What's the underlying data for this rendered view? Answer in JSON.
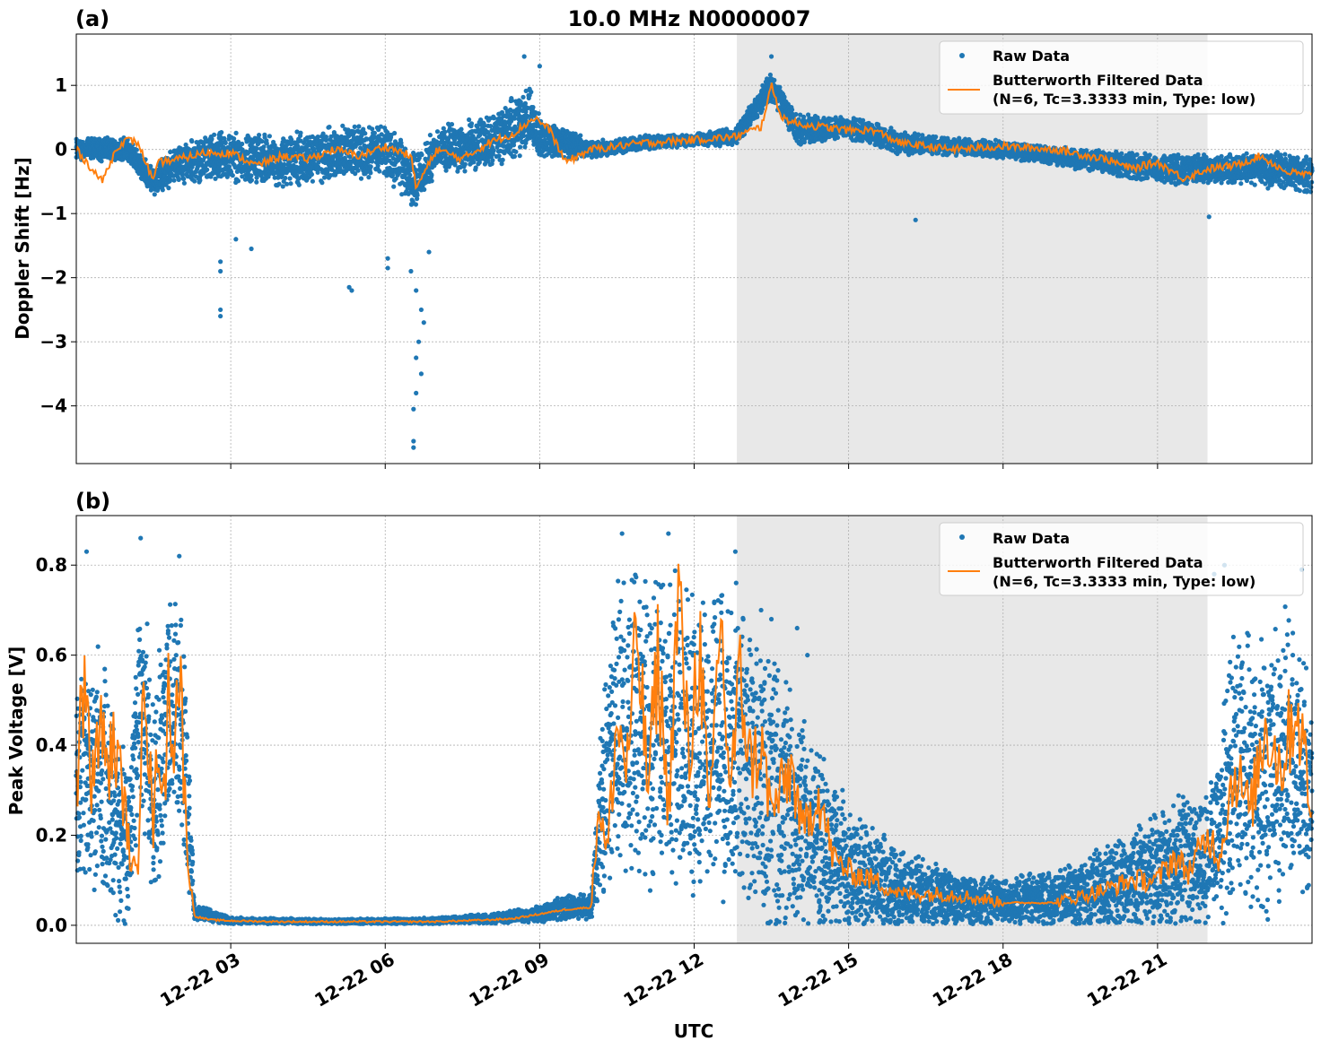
{
  "figure": {
    "title": "10.0 MHz N0000007",
    "xlabel": "UTC"
  },
  "colors": {
    "raw": "#1f77b4",
    "filtered": "#ff7f0e",
    "shade": "#e8e8e8",
    "grid": "#b0b0b0"
  },
  "chart_data": [
    {
      "type": "scatter",
      "panel": "(a)",
      "ylabel": "Doppler Shift [Hz]",
      "xlim_hours": [
        0,
        24
      ],
      "ylim": [
        -4.9,
        1.8
      ],
      "yticks": [
        -4,
        -3,
        -2,
        -1,
        0,
        1
      ],
      "ytick_labels": [
        "−4",
        "−3",
        "−2",
        "−1",
        "0",
        "1"
      ],
      "xticks_hours": [
        3,
        6,
        9,
        12,
        15,
        18,
        21
      ],
      "xtick_labels": [
        "12-22 03",
        "12-22 06",
        "12-22 09",
        "12-22 12",
        "12-22 15",
        "12-22 18",
        "12-22 21"
      ],
      "shaded_span_hours": [
        12.83,
        21.97
      ],
      "grid": true,
      "legend_position": "upper right",
      "legend": [
        "Raw Data",
        "Butterworth Filtered Data",
        "(N=6, Tc=3.3333 min, Type: low)"
      ],
      "series": [
        {
          "name": "Raw Data",
          "style": "markers",
          "x_hours": [
            0,
            1,
            1.5,
            2,
            3,
            4,
            5,
            6,
            6.6,
            7,
            8,
            8.8,
            9,
            10,
            11,
            12,
            12.8,
            13.5,
            14,
            15,
            16,
            17,
            18,
            19,
            20,
            21,
            22,
            23,
            24
          ],
          "center": [
            0.0,
            0.0,
            -0.5,
            -0.2,
            -0.1,
            -0.2,
            -0.05,
            0.0,
            -0.5,
            0.0,
            0.1,
            0.5,
            0.2,
            0.0,
            0.1,
            0.15,
            0.2,
            1.0,
            0.3,
            0.35,
            0.1,
            0.05,
            0.0,
            -0.1,
            -0.2,
            -0.3,
            -0.3,
            -0.3,
            -0.4
          ],
          "spread_hz": [
            0.2,
            0.2,
            0.25,
            0.35,
            0.45,
            0.45,
            0.45,
            0.45,
            0.5,
            0.4,
            0.45,
            0.55,
            0.35,
            0.15,
            0.12,
            0.1,
            0.15,
            0.25,
            0.25,
            0.2,
            0.2,
            0.15,
            0.15,
            0.15,
            0.2,
            0.25,
            0.25,
            0.3,
            0.3
          ],
          "outliers": [
            {
              "x": 2.8,
              "y": -2.6
            },
            {
              "x": 2.8,
              "y": -2.5
            },
            {
              "x": 2.8,
              "y": -1.9
            },
            {
              "x": 2.8,
              "y": -1.75
            },
            {
              "x": 3.1,
              "y": -1.4
            },
            {
              "x": 3.4,
              "y": -1.55
            },
            {
              "x": 5.35,
              "y": -2.2
            },
            {
              "x": 5.3,
              "y": -2.15
            },
            {
              "x": 6.05,
              "y": -1.7
            },
            {
              "x": 6.05,
              "y": -1.85
            },
            {
              "x": 6.55,
              "y": -4.65
            },
            {
              "x": 6.55,
              "y": -4.55
            },
            {
              "x": 6.55,
              "y": -4.05
            },
            {
              "x": 6.6,
              "y": -3.8
            },
            {
              "x": 6.6,
              "y": -3.25
            },
            {
              "x": 6.65,
              "y": -3.0
            },
            {
              "x": 6.7,
              "y": -3.5
            },
            {
              "x": 6.7,
              "y": -2.5
            },
            {
              "x": 6.6,
              "y": -2.2
            },
            {
              "x": 6.75,
              "y": -2.7
            },
            {
              "x": 6.5,
              "y": -1.9
            },
            {
              "x": 6.85,
              "y": -1.6
            },
            {
              "x": 8.7,
              "y": 1.45
            },
            {
              "x": 9.0,
              "y": 1.3
            },
            {
              "x": 13.5,
              "y": 1.45
            },
            {
              "x": 16.3,
              "y": -1.1
            },
            {
              "x": 22.0,
              "y": -1.05
            }
          ]
        },
        {
          "name": "Butterworth Filtered Data",
          "style": "line",
          "x_hours": [
            0,
            0.5,
            0.8,
            1.0,
            1.2,
            1.5,
            1.6,
            2.0,
            2.5,
            3.0,
            3.5,
            4.0,
            4.5,
            5.0,
            5.5,
            6.0,
            6.5,
            6.6,
            7.0,
            7.5,
            8.0,
            8.5,
            8.9,
            9.2,
            9.5,
            10.0,
            11.0,
            12.0,
            12.8,
            13.3,
            13.5,
            13.7,
            14.0,
            14.5,
            15.0,
            15.5,
            16.0,
            17.0,
            18.0,
            19.0,
            20.0,
            20.5,
            21.0,
            21.5,
            22.0,
            22.5,
            23.0,
            23.5,
            24.0
          ],
          "y": [
            0.0,
            -0.5,
            0.05,
            0.15,
            0.1,
            -0.5,
            -0.2,
            -0.15,
            -0.05,
            -0.05,
            -0.25,
            -0.1,
            -0.15,
            0.0,
            -0.1,
            0.05,
            -0.1,
            -0.6,
            0.0,
            -0.15,
            0.1,
            0.25,
            0.5,
            0.3,
            -0.2,
            0.0,
            0.1,
            0.15,
            0.2,
            0.35,
            1.0,
            0.5,
            0.4,
            0.35,
            0.3,
            0.3,
            0.1,
            0.0,
            0.05,
            0.0,
            -0.15,
            -0.3,
            -0.2,
            -0.45,
            -0.3,
            -0.25,
            -0.1,
            -0.35,
            -0.4
          ]
        }
      ]
    },
    {
      "type": "scatter",
      "panel": "(b)",
      "ylabel": "Peak Voltage [V]",
      "xlim_hours": [
        0,
        24
      ],
      "ylim": [
        -0.04,
        0.91
      ],
      "yticks": [
        0.0,
        0.2,
        0.4,
        0.6,
        0.8
      ],
      "ytick_labels": [
        "0.0",
        "0.2",
        "0.4",
        "0.6",
        "0.8"
      ],
      "xticks_hours": [
        3,
        6,
        9,
        12,
        15,
        18,
        21
      ],
      "xtick_labels": [
        "12-22 03",
        "12-22 06",
        "12-22 09",
        "12-22 12",
        "12-22 15",
        "12-22 18",
        "12-22 21"
      ],
      "shaded_span_hours": [
        12.83,
        21.97
      ],
      "grid": true,
      "legend_position": "upper right",
      "legend": [
        "Raw Data",
        "Butterworth Filtered Data",
        "(N=6, Tc=3.3333 min, Type: low)"
      ],
      "series": [
        {
          "name": "Raw Data",
          "style": "markers",
          "x_hours": [
            0,
            0.5,
            1.0,
            1.25,
            1.5,
            1.8,
            2.1,
            2.3,
            3,
            5,
            7,
            8,
            9,
            9.5,
            10.0,
            10.2,
            10.5,
            11,
            12,
            12.8,
            13.5,
            14,
            14.5,
            15,
            16,
            17,
            18,
            19,
            20,
            21,
            22,
            22.5,
            23,
            23.5,
            24
          ],
          "center": [
            0.3,
            0.35,
            0.15,
            0.55,
            0.25,
            0.5,
            0.4,
            0.03,
            0.01,
            0.008,
            0.01,
            0.015,
            0.025,
            0.04,
            0.04,
            0.25,
            0.45,
            0.45,
            0.4,
            0.4,
            0.3,
            0.25,
            0.18,
            0.12,
            0.08,
            0.06,
            0.05,
            0.06,
            0.08,
            0.12,
            0.15,
            0.35,
            0.3,
            0.4,
            0.3
          ],
          "spread_v": [
            0.25,
            0.3,
            0.2,
            0.3,
            0.25,
            0.3,
            0.3,
            0.02,
            0.008,
            0.006,
            0.008,
            0.012,
            0.02,
            0.03,
            0.03,
            0.25,
            0.35,
            0.4,
            0.38,
            0.38,
            0.35,
            0.3,
            0.22,
            0.15,
            0.1,
            0.07,
            0.06,
            0.07,
            0.1,
            0.15,
            0.18,
            0.35,
            0.35,
            0.35,
            0.3
          ],
          "outliers": [
            {
              "x": 0.2,
              "y": 0.83
            },
            {
              "x": 1.25,
              "y": 0.86
            },
            {
              "x": 2.0,
              "y": 0.82
            },
            {
              "x": 10.6,
              "y": 0.87
            },
            {
              "x": 11.5,
              "y": 0.87
            },
            {
              "x": 12.8,
              "y": 0.83
            },
            {
              "x": 13.3,
              "y": 0.7
            },
            {
              "x": 13.5,
              "y": 0.68
            },
            {
              "x": 14.0,
              "y": 0.66
            },
            {
              "x": 14.2,
              "y": 0.6
            },
            {
              "x": 22.3,
              "y": 0.8
            },
            {
              "x": 22.1,
              "y": 0.78
            },
            {
              "x": 23.8,
              "y": 0.79
            }
          ]
        },
        {
          "name": "Butterworth Filtered Data",
          "style": "line",
          "x_hours": [
            0,
            0.15,
            0.3,
            0.45,
            0.6,
            0.75,
            0.9,
            1.05,
            1.2,
            1.3,
            1.4,
            1.5,
            1.6,
            1.7,
            1.8,
            1.9,
            2.0,
            2.1,
            2.2,
            2.3,
            2.6,
            3,
            4,
            5,
            6,
            7,
            8,
            8.5,
            9,
            9.5,
            10.0,
            10.15,
            10.3,
            10.5,
            10.7,
            10.9,
            11.1,
            11.3,
            11.5,
            11.7,
            11.9,
            12.1,
            12.3,
            12.5,
            12.7,
            12.9,
            13.1,
            13.3,
            13.5,
            13.7,
            13.9,
            14.1,
            14.4,
            14.7,
            15.0,
            15.5,
            16,
            17,
            18,
            19,
            20,
            20.5,
            21,
            21.3,
            21.6,
            22,
            22.2,
            22.5,
            22.8,
            23.1,
            23.4,
            23.7,
            24.0
          ],
          "y": [
            0.3,
            0.55,
            0.3,
            0.45,
            0.35,
            0.4,
            0.3,
            0.15,
            0.1,
            0.7,
            0.4,
            0.2,
            0.45,
            0.25,
            0.55,
            0.4,
            0.6,
            0.3,
            0.1,
            0.02,
            0.012,
            0.01,
            0.008,
            0.008,
            0.008,
            0.008,
            0.012,
            0.015,
            0.025,
            0.035,
            0.04,
            0.28,
            0.15,
            0.45,
            0.35,
            0.65,
            0.3,
            0.6,
            0.25,
            0.75,
            0.35,
            0.65,
            0.2,
            0.7,
            0.3,
            0.55,
            0.35,
            0.4,
            0.25,
            0.3,
            0.35,
            0.2,
            0.3,
            0.15,
            0.12,
            0.1,
            0.07,
            0.07,
            0.05,
            0.05,
            0.08,
            0.1,
            0.1,
            0.15,
            0.12,
            0.2,
            0.15,
            0.35,
            0.25,
            0.45,
            0.35,
            0.5,
            0.25
          ]
        }
      ]
    }
  ]
}
